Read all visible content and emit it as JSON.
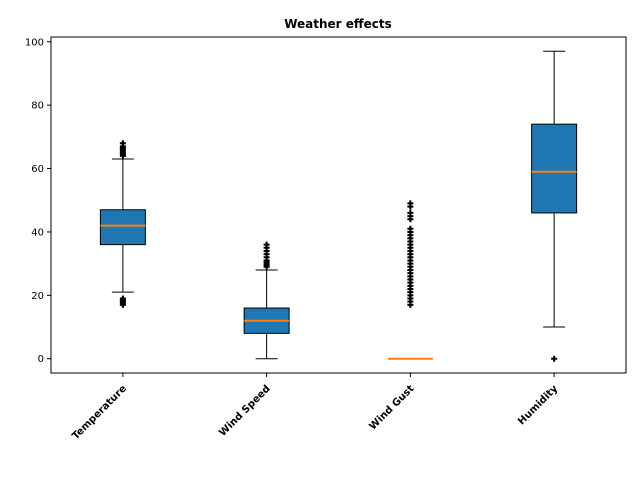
{
  "chart_data": {
    "type": "box",
    "title": "Weather effects",
    "xlabel": "",
    "ylabel": "",
    "ylim": [
      -4.5,
      101.5
    ],
    "yticks": [
      0,
      20,
      40,
      60,
      80,
      100
    ],
    "grid": false,
    "box_color": "#1f77b4",
    "median_color": "#ff7f0e",
    "categories": [
      "Temperature",
      "Wind Speed",
      "Wind Gust",
      "Humidity"
    ],
    "boxes": [
      {
        "label": "Temperature",
        "whisker_low": 21,
        "q1": 36,
        "median": 42,
        "q3": 47,
        "whisker_high": 63,
        "outliers": [
          17,
          17.5,
          18,
          18.5,
          19,
          64,
          64.5,
          65,
          65.5,
          66,
          66.5,
          67,
          68
        ]
      },
      {
        "label": "Wind Speed",
        "whisker_low": 0,
        "q1": 8,
        "median": 12,
        "q3": 16,
        "whisker_high": 28,
        "outliers": [
          29,
          29.5,
          30,
          30.5,
          31,
          32,
          33,
          34,
          35,
          36
        ]
      },
      {
        "label": "Wind Gust",
        "whisker_low": 0,
        "q1": 0,
        "median": 0,
        "q3": 0,
        "whisker_high": 0,
        "outliers": [
          17,
          18,
          19,
          20,
          21,
          22,
          23,
          24,
          25,
          26,
          27,
          28,
          29,
          30,
          31,
          32,
          33,
          34,
          35,
          36,
          37,
          38,
          39,
          40,
          41,
          44,
          45,
          46,
          48,
          49
        ]
      },
      {
        "label": "Humidity",
        "whisker_low": 10,
        "q1": 46,
        "median": 59,
        "q3": 74,
        "whisker_high": 97,
        "outliers": [
          0
        ]
      }
    ]
  }
}
